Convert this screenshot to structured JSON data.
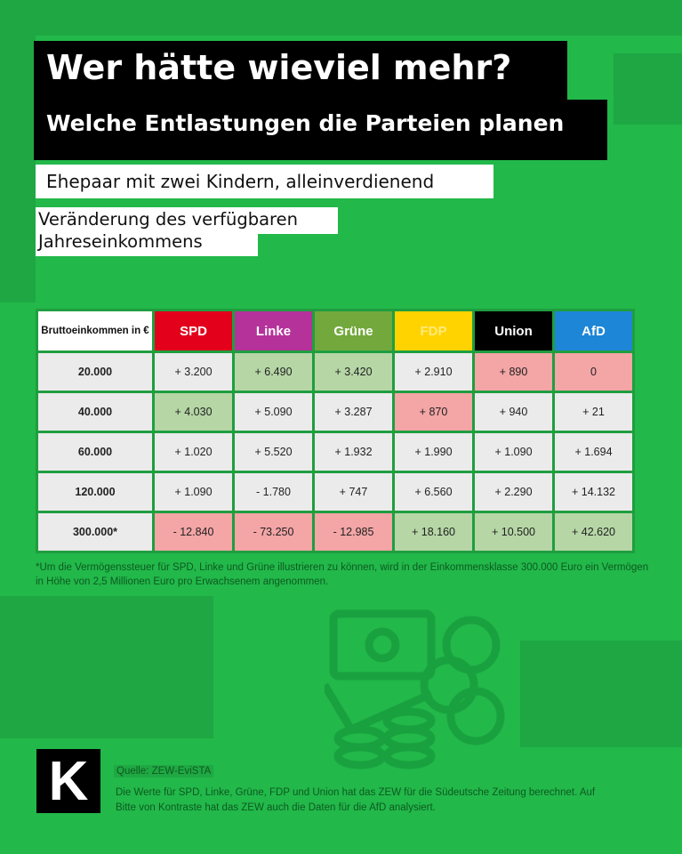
{
  "header": {
    "title": "Wer hätte wieviel mehr?",
    "subtitle": "Welche Entlastungen die Parteien planen",
    "household": "Ehepaar mit zwei Kindern, alleinverdienend",
    "measure": "Veränderung des verfügbaren Jahreseinkommens"
  },
  "table": {
    "corner_header": "Bruttoeinkommen in €",
    "columns": [
      {
        "label": "SPD",
        "color": "#e3001b"
      },
      {
        "label": "Linke",
        "color": "#b5329b"
      },
      {
        "label": "Grüne",
        "color": "#73a93c"
      },
      {
        "label": "FDP",
        "color": "#ffd300"
      },
      {
        "label": "Union",
        "color": "#000000"
      },
      {
        "label": "AfD",
        "color": "#1d86d7"
      }
    ],
    "rows": [
      {
        "income": "20.000",
        "values": [
          "+ 3.200",
          "+ 6.490",
          "+ 3.420",
          "+ 2.910",
          "+ 890",
          "0"
        ],
        "highlight": [
          "",
          "g",
          "g",
          "",
          "r",
          "r"
        ]
      },
      {
        "income": "40.000",
        "values": [
          "+ 4.030",
          "+ 5.090",
          "+ 3.287",
          "+ 870",
          "+ 940",
          "+ 21"
        ],
        "highlight": [
          "g",
          "",
          "",
          "r",
          "",
          ""
        ]
      },
      {
        "income": "60.000",
        "values": [
          "+ 1.020",
          "+ 5.520",
          "+ 1.932",
          "+ 1.990",
          "+ 1.090",
          "+ 1.694"
        ],
        "highlight": [
          "",
          "",
          "",
          "",
          "",
          ""
        ]
      },
      {
        "income": "120.000",
        "values": [
          "+ 1.090",
          "- 1.780",
          "+ 747",
          "+ 6.560",
          "+ 2.290",
          "+ 14.132"
        ],
        "highlight": [
          "",
          "",
          "",
          "",
          "",
          ""
        ]
      },
      {
        "income": "300.000*",
        "values": [
          "- 12.840",
          "- 73.250",
          "- 12.985",
          "+ 18.160",
          "+ 10.500",
          "+ 42.620"
        ],
        "highlight": [
          "r",
          "r",
          "r",
          "g",
          "g",
          "g"
        ]
      }
    ],
    "highlight_colors": {
      "best": "#b6d6a6",
      "worst": "#f4a5a6",
      "neutral": "#ebebeb"
    }
  },
  "footnote": "*Um die Vermögenssteuer für SPD, Linke und Grüne illustrieren zu können, wird in der Einkommensklasse 300.000 Euro ein Vermögen in Höhe von 2,5 Millionen Euro pro Erwachsenem angenommen.",
  "source": {
    "label": "Quelle: ZEW-EviSTA",
    "text": "Die Werte für SPD, Linke, Grüne, FDP und Union hat das ZEW für die Südeutsche Zeitung berechnet. Auf Bitte von Kontraste hat das ZEW auch die Daten für die AfD analysiert."
  },
  "logo": {
    "text": "K",
    "icon": "money-coins-icon"
  },
  "colors": {
    "background": "#22b84a"
  }
}
